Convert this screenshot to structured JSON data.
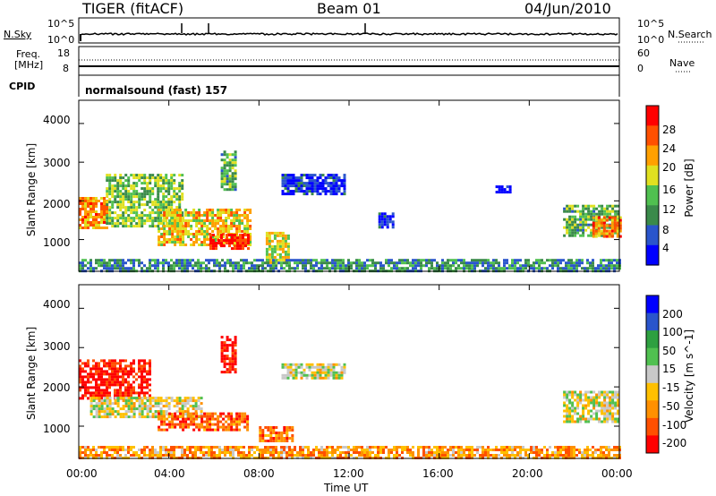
{
  "header": {
    "radar": "TIGER (fitACF)",
    "beam": "Beam 01",
    "date": "04/Jun/2010"
  },
  "params": {
    "nsky_label": "N.Sky",
    "nsearch_label": "N.Search",
    "freq_label_1": "Freq.",
    "freq_label_2": "[MHz]",
    "nave_label": "Nave",
    "cpid_label": "CPID",
    "left_ticks_top": [
      "10^5",
      "10^0"
    ],
    "right_ticks_top": [
      "10^5",
      "10^0"
    ],
    "left_ticks_freq": [
      "18",
      "8"
    ],
    "right_ticks_nave": [
      "60",
      "0"
    ],
    "cpid_text": "normalsound (fast) 157"
  },
  "chart_data": [
    {
      "type": "heatmap",
      "ylabel": "Slant Range [km]",
      "ylim": [
        180,
        4600
      ],
      "yticks": [
        "4000",
        "3000",
        "2000",
        "1000"
      ],
      "colorbar": {
        "label": "Power [dB]",
        "ticks": [
          "28",
          "24",
          "20",
          "16",
          "12",
          "8",
          "4"
        ],
        "colors": [
          "#0000ff",
          "#2a55cc",
          "#3a8a4a",
          "#50c050",
          "#e0e020",
          "#ffa000",
          "#ff5000",
          "#ff0000"
        ]
      },
      "patches": [
        {
          "t0": 0.0,
          "t1": 1.3,
          "r0": 1300,
          "r1": 2100,
          "level": 0.72
        },
        {
          "t0": 1.2,
          "t1": 4.6,
          "r0": 1350,
          "r1": 2700,
          "level": 0.45
        },
        {
          "t0": 3.5,
          "t1": 7.6,
          "r0": 850,
          "r1": 1800,
          "level": 0.62
        },
        {
          "t0": 5.8,
          "t1": 7.5,
          "r0": 750,
          "r1": 1150,
          "level": 0.92
        },
        {
          "t0": 6.3,
          "t1": 6.9,
          "r0": 2300,
          "r1": 3300,
          "level": 0.4
        },
        {
          "t0": 8.3,
          "t1": 9.3,
          "r0": 400,
          "r1": 1200,
          "level": 0.55
        },
        {
          "t0": 9.0,
          "t1": 11.8,
          "r0": 2200,
          "r1": 2700,
          "level": 0.12
        },
        {
          "t0": 13.3,
          "t1": 13.9,
          "r0": 1300,
          "r1": 1700,
          "level": 0.1
        },
        {
          "t0": 18.5,
          "t1": 19.1,
          "r0": 2200,
          "r1": 2400,
          "level": 0.1
        },
        {
          "t0": 21.5,
          "t1": 24.0,
          "r0": 1100,
          "r1": 1900,
          "level": 0.4
        },
        {
          "t0": 22.8,
          "t1": 24.0,
          "r0": 1100,
          "r1": 1600,
          "level": 0.75
        },
        {
          "t0": 0.0,
          "t1": 24.0,
          "r0": 180,
          "r1": 500,
          "level": 0.3
        }
      ]
    },
    {
      "type": "heatmap",
      "ylabel": "Slant Range [km]",
      "ylim": [
        180,
        4600
      ],
      "yticks": [
        "4000",
        "3000",
        "2000",
        "1000"
      ],
      "xlabel": "Time UT",
      "xticks": [
        "00:00",
        "04:00",
        "08:00",
        "12:00",
        "16:00",
        "20:00",
        "00:00"
      ],
      "colorbar": {
        "label": "Velocity [m s^-1]",
        "ticks": [
          "200",
          "100",
          "50",
          "15",
          "-15",
          "-50",
          "-100",
          "-200"
        ],
        "colors": [
          "#ff0000",
          "#ff5000",
          "#ff9000",
          "#ffc000",
          "#c8c8c8",
          "#50c050",
          "#2ea040",
          "#2a55cc",
          "#0000ff"
        ]
      },
      "patches": [
        {
          "t0": 0.0,
          "t1": 3.2,
          "r0": 1700,
          "r1": 2700,
          "level": 0.05
        },
        {
          "t0": 0.5,
          "t1": 5.5,
          "r0": 1250,
          "r1": 1750,
          "level": 0.47
        },
        {
          "t0": 3.5,
          "t1": 7.5,
          "r0": 900,
          "r1": 1350,
          "level": 0.18
        },
        {
          "t0": 6.3,
          "t1": 6.9,
          "r0": 2400,
          "r1": 3300,
          "level": 0.05
        },
        {
          "t0": 8.0,
          "t1": 9.5,
          "r0": 600,
          "r1": 1000,
          "level": 0.22
        },
        {
          "t0": 9.0,
          "t1": 11.8,
          "r0": 2200,
          "r1": 2600,
          "level": 0.47
        },
        {
          "t0": 21.5,
          "t1": 24.0,
          "r0": 1100,
          "r1": 1900,
          "level": 0.47
        },
        {
          "t0": 0.0,
          "t1": 24.0,
          "r0": 180,
          "r1": 500,
          "level": 0.3
        }
      ]
    }
  ]
}
